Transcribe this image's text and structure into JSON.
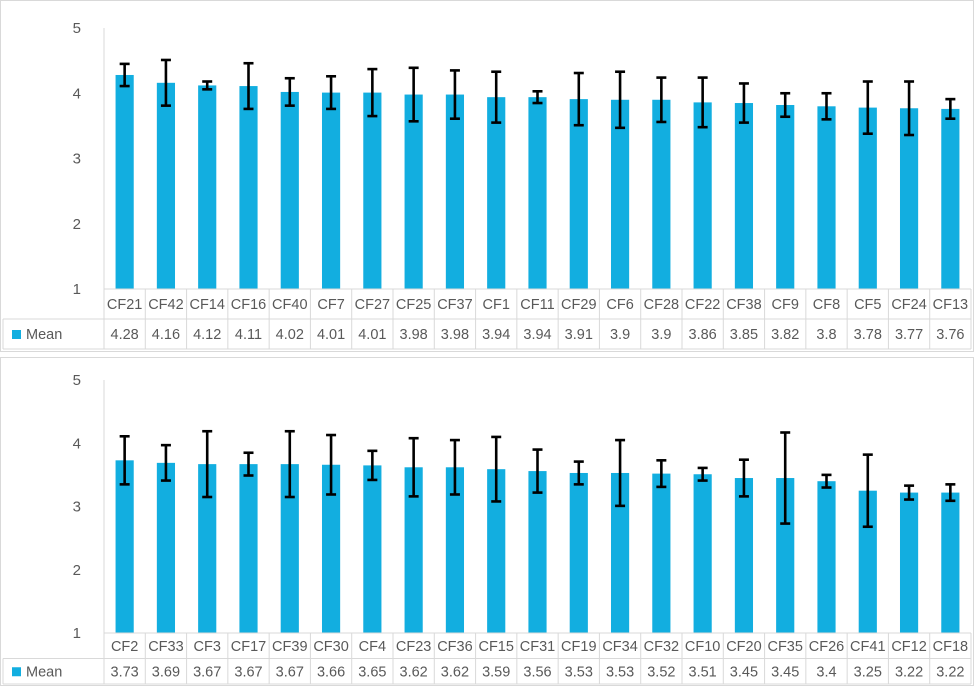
{
  "chart_data": [
    {
      "type": "bar",
      "categories": [
        "CF21",
        "CF42",
        "CF14",
        "CF16",
        "CF40",
        "CF7",
        "CF27",
        "CF25",
        "CF37",
        "CF1",
        "CF11",
        "CF29",
        "CF6",
        "CF28",
        "CF22",
        "CF38",
        "CF9",
        "CF8",
        "CF5",
        "CF24",
        "CF13"
      ],
      "series": [
        {
          "name": "Mean",
          "values": [
            4.28,
            4.16,
            4.12,
            4.11,
            4.02,
            4.01,
            4.01,
            3.98,
            3.98,
            3.94,
            3.94,
            3.91,
            3.9,
            3.9,
            3.86,
            3.85,
            3.82,
            3.8,
            3.78,
            3.77,
            3.76
          ],
          "error": [
            0.17,
            0.35,
            0.06,
            0.35,
            0.21,
            0.25,
            0.36,
            0.41,
            0.37,
            0.39,
            0.09,
            0.4,
            0.43,
            0.34,
            0.38,
            0.3,
            0.18,
            0.2,
            0.4,
            0.41,
            0.15
          ]
        }
      ],
      "ylim": [
        1,
        5
      ],
      "yticks": [
        1,
        2,
        3,
        4,
        5
      ],
      "data_table": true,
      "bar_color": "#12aee0",
      "error_color": "#000000"
    },
    {
      "type": "bar",
      "categories": [
        "CF2",
        "CF33",
        "CF3",
        "CF17",
        "CF39",
        "CF30",
        "CF4",
        "CF23",
        "CF36",
        "CF15",
        "CF31",
        "CF19",
        "CF34",
        "CF32",
        "CF10",
        "CF20",
        "CF35",
        "CF26",
        "CF41",
        "CF12",
        "CF18"
      ],
      "series": [
        {
          "name": "Mean",
          "values": [
            3.73,
            3.69,
            3.67,
            3.67,
            3.67,
            3.66,
            3.65,
            3.62,
            3.62,
            3.59,
            3.56,
            3.53,
            3.53,
            3.52,
            3.51,
            3.45,
            3.45,
            3.4,
            3.25,
            3.22,
            3.22
          ],
          "error": [
            0.38,
            0.28,
            0.52,
            0.18,
            0.52,
            0.47,
            0.23,
            0.46,
            0.43,
            0.51,
            0.34,
            0.18,
            0.52,
            0.21,
            0.1,
            0.29,
            0.72,
            0.1,
            0.57,
            0.11,
            0.13
          ]
        }
      ],
      "ylim": [
        1,
        5
      ],
      "yticks": [
        1,
        2,
        3,
        4,
        5
      ],
      "data_table": true,
      "bar_color": "#12aee0",
      "error_color": "#000000"
    }
  ]
}
